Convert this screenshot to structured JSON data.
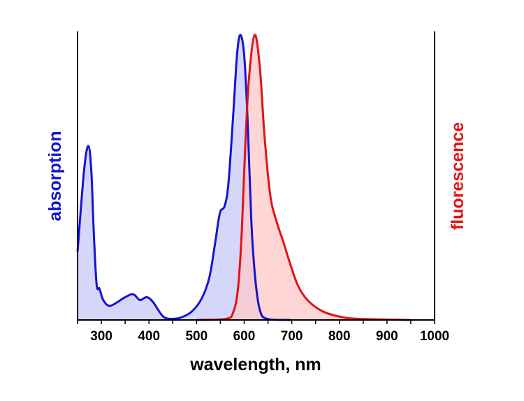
{
  "chart_data": {
    "type": "area",
    "xlabel": "wavelength, nm",
    "ylabel_left": "absorption",
    "ylabel_right": "fluorescence",
    "xlim": [
      250,
      1000
    ],
    "ylim": [
      0,
      1
    ],
    "x_ticks": [
      300,
      400,
      500,
      600,
      700,
      800,
      900,
      1000
    ],
    "x_tick_labels": [
      "300",
      "400",
      "500",
      "600",
      "700",
      "800",
      "900",
      "1000"
    ],
    "grid": false,
    "colors": {
      "absorption": "#1414d2",
      "fluorescence": "#e01414",
      "absorption_fill": "#c8c8fa",
      "fluorescence_fill": "#ffc8c8"
    },
    "series": [
      {
        "name": "absorption",
        "x": [
          250,
          264,
          273,
          279,
          284,
          290,
          296,
          304,
          319,
          350,
          367,
          381,
          395,
          408,
          430,
          451,
          471,
          491,
          511,
          527,
          539,
          549,
          559,
          567,
          577,
          585,
          592,
          600,
          607,
          615,
          623,
          633,
          648,
          698
        ],
        "y": [
          0.24,
          0.53,
          0.61,
          0.52,
          0.31,
          0.125,
          0.11,
          0.07,
          0.05,
          0.08,
          0.09,
          0.07,
          0.08,
          0.064,
          0.012,
          0.004,
          0.011,
          0.031,
          0.076,
          0.15,
          0.27,
          0.375,
          0.4,
          0.48,
          0.72,
          0.93,
          1.0,
          0.93,
          0.71,
          0.35,
          0.15,
          0.035,
          0.004,
          0
        ]
      },
      {
        "name": "fluorescence",
        "x": [
          499,
          562,
          577,
          587,
          595,
          602,
          610,
          622,
          633,
          643,
          655,
          668,
          683,
          698,
          714,
          734,
          764,
          800,
          840,
          949
        ],
        "y": [
          0,
          0.004,
          0.027,
          0.11,
          0.31,
          0.6,
          0.845,
          1.0,
          0.885,
          0.64,
          0.436,
          0.346,
          0.27,
          0.19,
          0.117,
          0.068,
          0.031,
          0.012,
          0.004,
          0
        ]
      }
    ]
  }
}
